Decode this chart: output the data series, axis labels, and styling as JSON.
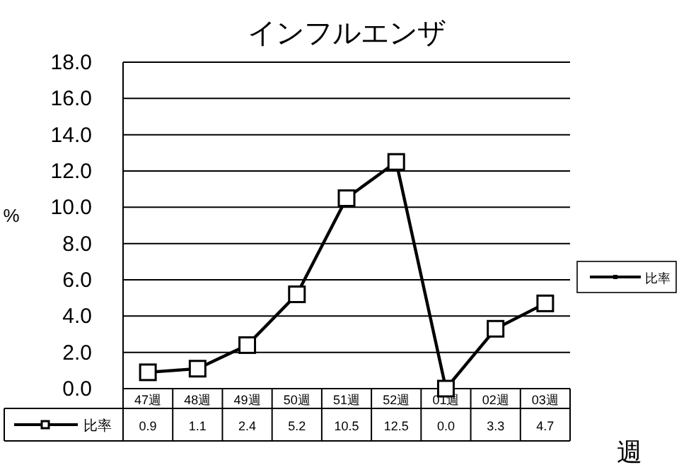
{
  "chart_data": {
    "type": "line",
    "title": "インフルエンザ",
    "xlabel": "週",
    "ylabel": "%",
    "categories": [
      "47週",
      "48週",
      "49週",
      "50週",
      "51週",
      "52週",
      "01週",
      "02週",
      "03週"
    ],
    "series": [
      {
        "name": "比率",
        "color": "#000000",
        "values": [
          0.9,
          1.1,
          2.4,
          5.2,
          10.5,
          12.5,
          0.0,
          3.3,
          4.7
        ],
        "value_labels": [
          "0.9",
          "1.1",
          "2.4",
          "5.2",
          "10.5",
          "12.5",
          "0.0",
          "3.3",
          "4.7"
        ]
      }
    ],
    "ylim": [
      0,
      18
    ],
    "yticks": [
      {
        "value": 0,
        "label": "0.0"
      },
      {
        "value": 2,
        "label": "2.0"
      },
      {
        "value": 4,
        "label": "4.0"
      },
      {
        "value": 6,
        "label": "6.0"
      },
      {
        "value": 8,
        "label": "8.0"
      },
      {
        "value": 10,
        "label": "10.0"
      },
      {
        "value": 12,
        "label": "12.0"
      },
      {
        "value": 14,
        "label": "14.0"
      },
      {
        "value": 16,
        "label": "16.0"
      },
      {
        "value": 18,
        "label": "18.0"
      }
    ],
    "grid": "y",
    "legend": "bottom left",
    "marker": "square",
    "line_style": "solid"
  }
}
